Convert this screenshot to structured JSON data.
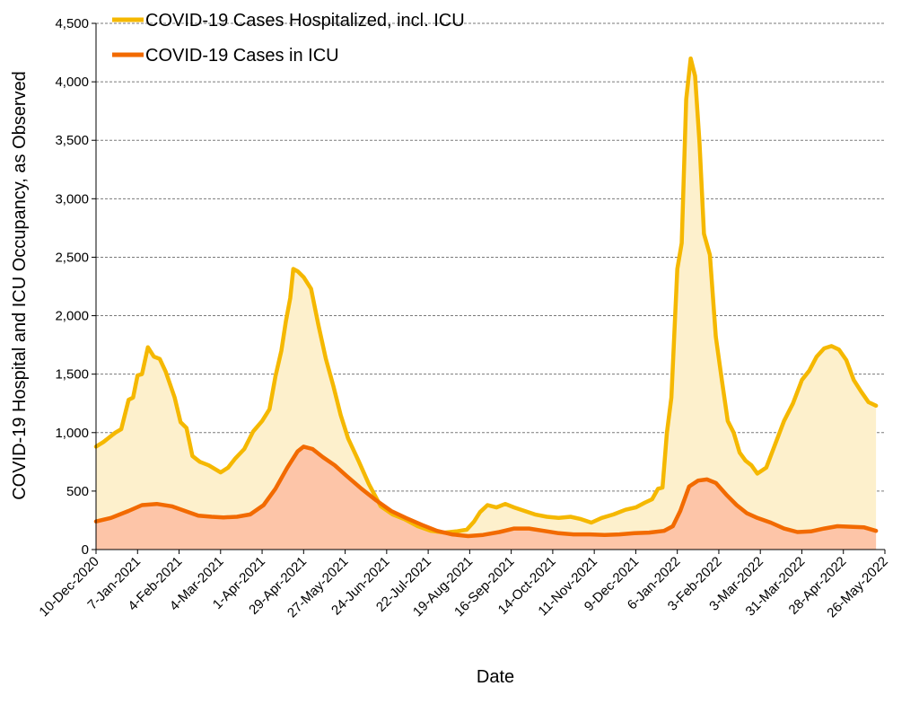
{
  "chart_data": {
    "type": "area",
    "xlabel": "Date",
    "ylabel": "COVID-19 Hospital and ICU Occupancy, as Observed",
    "ylim": [
      0,
      4500
    ],
    "yticks": [
      0,
      500,
      1000,
      1500,
      2000,
      2500,
      3000,
      3500,
      4000,
      4500
    ],
    "ytick_labels": [
      "0",
      "500",
      "1,000",
      "1,500",
      "2,000",
      "2,500",
      "3,000",
      "3,500",
      "4,000",
      "4,500"
    ],
    "xlim": [
      "2020-12-10",
      "2022-05-26"
    ],
    "xticks": [
      "2020-12-10",
      "2021-01-07",
      "2021-02-04",
      "2021-03-04",
      "2021-04-01",
      "2021-04-29",
      "2021-05-27",
      "2021-06-24",
      "2021-07-22",
      "2021-08-19",
      "2021-09-16",
      "2021-10-14",
      "2021-11-11",
      "2021-12-09",
      "2022-01-06",
      "2022-02-03",
      "2022-03-03",
      "2022-03-31",
      "2022-04-28",
      "2022-05-26"
    ],
    "xtick_labels": [
      "10-Dec-2020",
      "7-Jan-2021",
      "4-Feb-2021",
      "4-Mar-2021",
      "1-Apr-2021",
      "29-Apr-2021",
      "27-May-2021",
      "24-Jun-2021",
      "22-Jul-2021",
      "19-Aug-2021",
      "16-Sep-2021",
      "14-Oct-2021",
      "11-Nov-2021",
      "9-Dec-2021",
      "6-Jan-2022",
      "3-Feb-2022",
      "3-Mar-2022",
      "31-Mar-2022",
      "28-Apr-2022",
      "26-May-2022"
    ],
    "grid": "horizontal dashed",
    "legend_position": "top-left",
    "series": [
      {
        "name": "COVID-19 Cases Hospitalized, incl. ICU",
        "color": "#F5B800",
        "fill": "#FDF0CC",
        "x": [
          "2020-12-10",
          "2020-12-15",
          "2020-12-19",
          "2020-12-23",
          "2020-12-27",
          "2021-01-01",
          "2021-01-04",
          "2021-01-07",
          "2021-01-10",
          "2021-01-14",
          "2021-01-18",
          "2021-01-22",
          "2021-01-26",
          "2021-02-01",
          "2021-02-05",
          "2021-02-09",
          "2021-02-13",
          "2021-02-18",
          "2021-02-24",
          "2021-03-04",
          "2021-03-09",
          "2021-03-14",
          "2021-03-20",
          "2021-03-26",
          "2021-04-01",
          "2021-04-06",
          "2021-04-10",
          "2021-04-14",
          "2021-04-17",
          "2021-04-20",
          "2021-04-22",
          "2021-04-25",
          "2021-04-29",
          "2021-05-04",
          "2021-05-09",
          "2021-05-14",
          "2021-05-19",
          "2021-05-24",
          "2021-05-29",
          "2021-06-05",
          "2021-06-12",
          "2021-06-20",
          "2021-06-28",
          "2021-07-06",
          "2021-07-15",
          "2021-07-24",
          "2021-08-02",
          "2021-08-10",
          "2021-08-17",
          "2021-08-22",
          "2021-08-26",
          "2021-08-31",
          "2021-09-06",
          "2021-09-12",
          "2021-09-18",
          "2021-09-25",
          "2021-10-02",
          "2021-10-10",
          "2021-10-18",
          "2021-10-26",
          "2021-11-02",
          "2021-11-09",
          "2021-11-16",
          "2021-11-24",
          "2021-12-02",
          "2021-12-09",
          "2021-12-15",
          "2021-12-20",
          "2021-12-24",
          "2021-12-27",
          "2021-12-30",
          "2022-01-02",
          "2022-01-06",
          "2022-01-09",
          "2022-01-12",
          "2022-01-15",
          "2022-01-18",
          "2022-01-21",
          "2022-01-24",
          "2022-01-28",
          "2022-02-01",
          "2022-02-05",
          "2022-02-09",
          "2022-02-13",
          "2022-02-17",
          "2022-02-21",
          "2022-02-25",
          "2022-03-01",
          "2022-03-07",
          "2022-03-13",
          "2022-03-19",
          "2022-03-25",
          "2022-03-31",
          "2022-04-05",
          "2022-04-10",
          "2022-04-15",
          "2022-04-20",
          "2022-04-25",
          "2022-04-30",
          "2022-05-05",
          "2022-05-10",
          "2022-05-15",
          "2022-05-20"
        ],
        "values": [
          880,
          920,
          960,
          1000,
          1030,
          1280,
          1300,
          1490,
          1500,
          1730,
          1650,
          1630,
          1520,
          1300,
          1090,
          1040,
          800,
          750,
          720,
          660,
          700,
          780,
          860,
          1010,
          1100,
          1200,
          1480,
          1700,
          1950,
          2150,
          2400,
          2380,
          2330,
          2230,
          1920,
          1630,
          1400,
          1150,
          950,
          760,
          560,
          370,
          300,
          260,
          200,
          160,
          145,
          155,
          170,
          240,
          320,
          380,
          360,
          390,
          360,
          330,
          300,
          280,
          270,
          280,
          260,
          230,
          270,
          300,
          340,
          360,
          400,
          430,
          520,
          530,
          1000,
          1300,
          2400,
          2620,
          3850,
          4200,
          4050,
          3470,
          2700,
          2520,
          1820,
          1450,
          1100,
          1000,
          830,
          760,
          720,
          650,
          700,
          900,
          1100,
          1250,
          1450,
          1530,
          1650,
          1720,
          1740,
          1710,
          1620,
          1450,
          1350,
          1260,
          1230
        ]
      },
      {
        "name": "COVID-19 Cases in ICU",
        "color": "#F26A00",
        "fill": "#FDC5A8",
        "x": [
          "2020-12-10",
          "2020-12-20",
          "2021-01-01",
          "2021-01-10",
          "2021-01-20",
          "2021-01-30",
          "2021-02-08",
          "2021-02-17",
          "2021-02-26",
          "2021-03-06",
          "2021-03-15",
          "2021-03-24",
          "2021-04-02",
          "2021-04-10",
          "2021-04-18",
          "2021-04-25",
          "2021-04-29",
          "2021-05-05",
          "2021-05-12",
          "2021-05-20",
          "2021-05-28",
          "2021-06-07",
          "2021-06-17",
          "2021-06-27",
          "2021-07-07",
          "2021-07-18",
          "2021-07-28",
          "2021-08-07",
          "2021-08-18",
          "2021-08-28",
          "2021-09-08",
          "2021-09-18",
          "2021-09-28",
          "2021-10-08",
          "2021-10-18",
          "2021-10-28",
          "2021-11-08",
          "2021-11-18",
          "2021-11-28",
          "2021-12-08",
          "2021-12-18",
          "2021-12-28",
          "2022-01-03",
          "2022-01-08",
          "2022-01-14",
          "2022-01-20",
          "2022-01-26",
          "2022-02-01",
          "2022-02-08",
          "2022-02-15",
          "2022-02-22",
          "2022-03-01",
          "2022-03-10",
          "2022-03-19",
          "2022-03-28",
          "2022-04-06",
          "2022-04-15",
          "2022-04-24",
          "2022-05-03",
          "2022-05-12",
          "2022-05-20"
        ],
        "values": [
          240,
          270,
          330,
          380,
          390,
          370,
          330,
          290,
          280,
          275,
          280,
          300,
          380,
          520,
          700,
          840,
          880,
          860,
          790,
          720,
          630,
          520,
          420,
          330,
          270,
          210,
          160,
          130,
          115,
          125,
          150,
          180,
          180,
          160,
          140,
          130,
          130,
          125,
          130,
          140,
          145,
          160,
          200,
          330,
          540,
          590,
          600,
          570,
          470,
          380,
          310,
          270,
          230,
          180,
          150,
          155,
          180,
          200,
          195,
          190,
          160
        ]
      }
    ]
  }
}
